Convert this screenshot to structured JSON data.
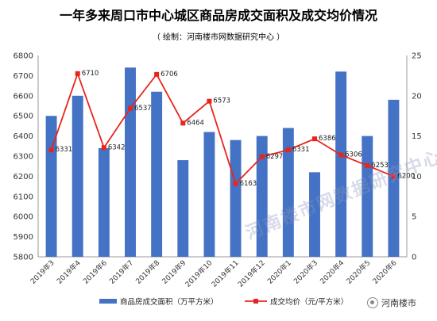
{
  "title": "一年多来周口市中心城区商品房成交面积及成交均价情况",
  "subtitle": "（ 绘制：河南楼市网数据研究中心 ）",
  "watermark": "河南楼市网数据研究中心",
  "brand": {
    "text": "河南楼市",
    "icon": "wechat-icon"
  },
  "chart_data": {
    "type": "bar",
    "categories": [
      "2019年3",
      "2019年4",
      "2019年6",
      "2019年7",
      "2019年8",
      "2019年9",
      "2019年10",
      "2019年11",
      "2019年12",
      "2020年1",
      "2020年3",
      "2020年4",
      "2020年5",
      "2020年6"
    ],
    "series": [
      {
        "name": "商品房成交面积（万平方米）",
        "type": "bar",
        "axis": "right",
        "color": "#4472C4",
        "values": [
          17.5,
          20.0,
          13.5,
          23.5,
          20.5,
          12.0,
          15.5,
          14.5,
          15.0,
          16.0,
          10.5,
          23.0,
          15.0,
          19.5
        ]
      },
      {
        "name": "成交均价（元/平方米）",
        "type": "line",
        "axis": "left",
        "color": "#E8251C",
        "values": [
          6331,
          6710,
          6342,
          6537,
          6706,
          6464,
          6573,
          6163,
          6297,
          6331,
          6386,
          6306,
          6253,
          6200
        ]
      }
    ],
    "data_labels": [
      "6331",
      "6710",
      "6342",
      "6537",
      "6706",
      "6464",
      "6573",
      "6163",
      "6297",
      "6331",
      "6386",
      "6306",
      "6253",
      "6200"
    ],
    "ylim_left": [
      5800,
      6800
    ],
    "yticks_left": [
      "5800",
      "5900",
      "6000",
      "6100",
      "6200",
      "6300",
      "6400",
      "6500",
      "6600",
      "6700",
      "6800"
    ],
    "ylim_right": [
      0,
      25
    ],
    "yticks_right": [
      "0",
      "5",
      "10",
      "15",
      "20",
      "25"
    ],
    "legend_position": "bottom",
    "grid": false
  }
}
